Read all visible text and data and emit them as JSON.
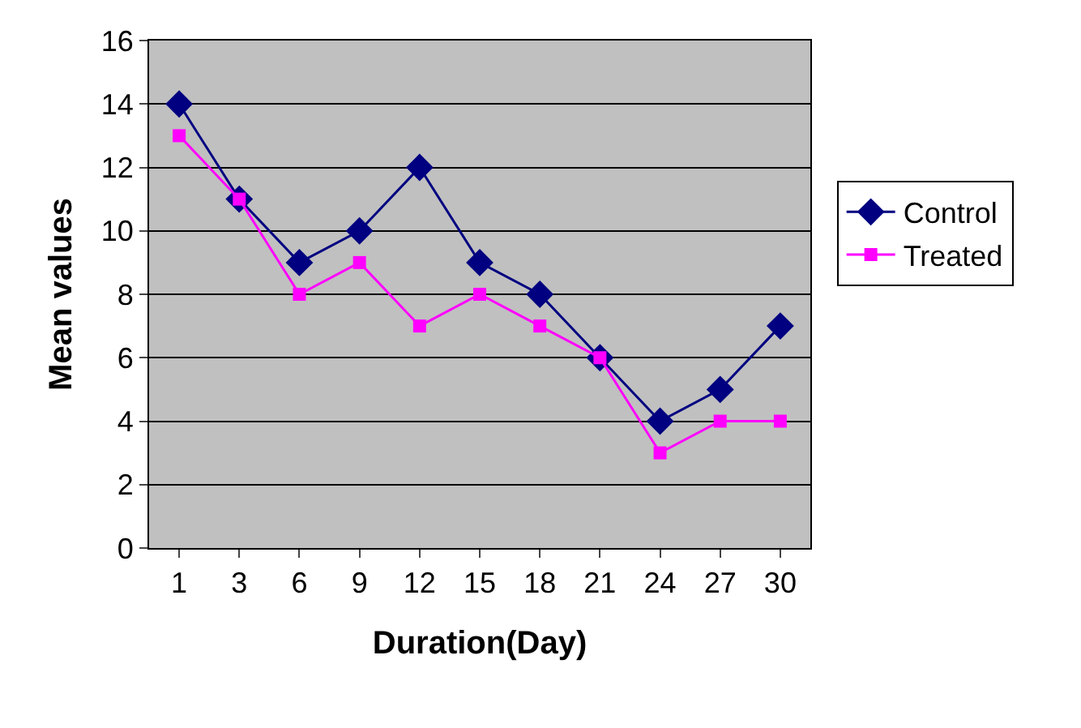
{
  "chart_data": {
    "type": "line",
    "xlabel": "Duration(Day)",
    "ylabel": "Mean values",
    "categories": [
      "1",
      "3",
      "6",
      "9",
      "12",
      "15",
      "18",
      "21",
      "24",
      "27",
      "30"
    ],
    "series": [
      {
        "name": "Control",
        "color": "#000080",
        "marker": "diamond",
        "values": [
          14,
          11,
          9,
          10,
          12,
          9,
          8,
          6,
          4,
          5,
          7
        ]
      },
      {
        "name": "Treated",
        "color": "#ff00ff",
        "marker": "square",
        "values": [
          13,
          11,
          8,
          9,
          7,
          8,
          7,
          6,
          3,
          4,
          4
        ]
      }
    ],
    "ylim": [
      0,
      16
    ],
    "yticks": [
      0,
      2,
      4,
      6,
      8,
      10,
      12,
      14,
      16
    ],
    "grid": "y",
    "legend": "right",
    "line_style": "solid"
  }
}
